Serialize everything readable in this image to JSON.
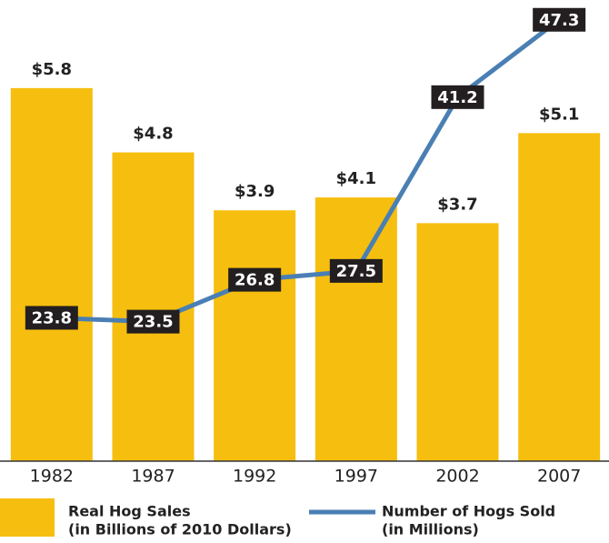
{
  "chart_data": {
    "type": "bar_line",
    "categories": [
      "1982",
      "1987",
      "1992",
      "1997",
      "2002",
      "2007"
    ],
    "series": [
      {
        "name": [
          "Real Hog Sales",
          "(in Billions of 2010 Dollars)"
        ],
        "type": "bar",
        "color": "#f6be0f",
        "values": [
          5.8,
          4.8,
          3.9,
          4.1,
          3.7,
          5.1
        ],
        "value_labels": [
          "$5.8",
          "$4.8",
          "$3.9",
          "$4.1",
          "$3.7",
          "$5.1"
        ]
      },
      {
        "name": [
          "Number of Hogs Sold",
          "(in Millions)"
        ],
        "type": "line",
        "color": "#4a7fb4",
        "axis": "y2",
        "values": [
          23.8,
          23.5,
          26.8,
          27.5,
          41.2,
          47.3
        ]
      }
    ],
    "ylim": [
      0,
      7
    ],
    "y2lim": [
      12.5,
      48
    ]
  }
}
